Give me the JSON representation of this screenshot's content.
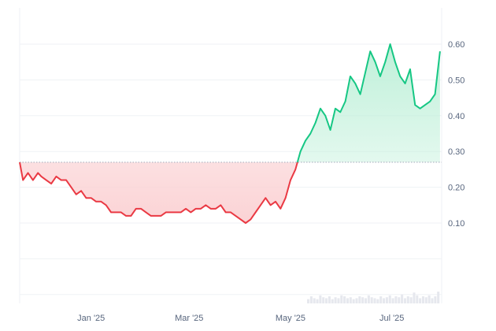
{
  "chart_data": {
    "type": "area",
    "baseline": 0.27,
    "ylim": [
      -0.1,
      0.65
    ],
    "y_ticks": [
      {
        "value": 0.1,
        "label": "0.10"
      },
      {
        "value": 0.2,
        "label": "0.20"
      },
      {
        "value": 0.3,
        "label": "0.30"
      },
      {
        "value": 0.4,
        "label": "0.40"
      },
      {
        "value": 0.5,
        "label": "0.50"
      },
      {
        "value": 0.6,
        "label": "0.60"
      }
    ],
    "x_range": [
      "2024-11-19",
      "2025-07-31"
    ],
    "x_ticks": [
      {
        "value": "2025-01-01",
        "label": "Jan '25"
      },
      {
        "value": "2025-03-01",
        "label": "Mar '25"
      },
      {
        "value": "2025-05-01",
        "label": "May '25"
      },
      {
        "value": "2025-07-01",
        "label": "Jul '25"
      }
    ],
    "series": [
      {
        "x": [
          "2024-11-19",
          "2024-11-21",
          "2024-11-24",
          "2024-11-27",
          "2024-11-30",
          "2024-12-02",
          "2024-12-05",
          "2024-12-08",
          "2024-12-11",
          "2024-12-14",
          "2024-12-17",
          "2024-12-20",
          "2024-12-23",
          "2024-12-26",
          "2024-12-29",
          "2025-01-01",
          "2025-01-04",
          "2025-01-07",
          "2025-01-10",
          "2025-01-13",
          "2025-01-16",
          "2025-01-19",
          "2025-01-22",
          "2025-01-25",
          "2025-01-28",
          "2025-01-31",
          "2025-02-03",
          "2025-02-06",
          "2025-02-09",
          "2025-02-12",
          "2025-02-15",
          "2025-02-18",
          "2025-02-21",
          "2025-02-24",
          "2025-02-27",
          "2025-03-02",
          "2025-03-05",
          "2025-03-08",
          "2025-03-11",
          "2025-03-14",
          "2025-03-17",
          "2025-03-20",
          "2025-03-23",
          "2025-03-26",
          "2025-03-29",
          "2025-04-01",
          "2025-04-04",
          "2025-04-07",
          "2025-04-10",
          "2025-04-13",
          "2025-04-16",
          "2025-04-19",
          "2025-04-22",
          "2025-04-25",
          "2025-04-28",
          "2025-05-01",
          "2025-05-04",
          "2025-05-07",
          "2025-05-10",
          "2025-05-13",
          "2025-05-16",
          "2025-05-19",
          "2025-05-22",
          "2025-05-25",
          "2025-05-28",
          "2025-05-31",
          "2025-06-03",
          "2025-06-06",
          "2025-06-09",
          "2025-06-12",
          "2025-06-15",
          "2025-06-18",
          "2025-06-21",
          "2025-06-24",
          "2025-06-27",
          "2025-06-30",
          "2025-07-03",
          "2025-07-06",
          "2025-07-09",
          "2025-07-12",
          "2025-07-15",
          "2025-07-18",
          "2025-07-21",
          "2025-07-24",
          "2025-07-27",
          "2025-07-30"
        ],
        "y": [
          0.27,
          0.22,
          0.24,
          0.22,
          0.24,
          0.23,
          0.22,
          0.21,
          0.23,
          0.22,
          0.22,
          0.2,
          0.18,
          0.19,
          0.17,
          0.17,
          0.16,
          0.16,
          0.15,
          0.13,
          0.13,
          0.13,
          0.12,
          0.12,
          0.14,
          0.14,
          0.13,
          0.12,
          0.12,
          0.12,
          0.13,
          0.13,
          0.13,
          0.13,
          0.14,
          0.13,
          0.14,
          0.14,
          0.15,
          0.14,
          0.14,
          0.15,
          0.13,
          0.13,
          0.12,
          0.11,
          0.1,
          0.11,
          0.13,
          0.15,
          0.17,
          0.15,
          0.16,
          0.14,
          0.17,
          0.22,
          0.25,
          0.3,
          0.33,
          0.35,
          0.38,
          0.42,
          0.4,
          0.36,
          0.42,
          0.41,
          0.44,
          0.51,
          0.49,
          0.46,
          0.52,
          0.58,
          0.55,
          0.51,
          0.55,
          0.6,
          0.55,
          0.51,
          0.49,
          0.53,
          0.43,
          0.42,
          0.43,
          0.44,
          0.46,
          0.58
        ]
      }
    ]
  },
  "colors": {
    "above": "#16c784",
    "below": "#ea3943",
    "fill_above_top": "#bff0d9",
    "fill_below_bottom": "#fbd3d5",
    "grid": "#eff2f5",
    "baseline": "#a1a7bb",
    "text": "#58667e",
    "volume": "#e6e8ee"
  },
  "volume_series": [
    0.2,
    0.5,
    0.3,
    0.2,
    0.6,
    0.4,
    0.3,
    0.5,
    0.2,
    0.4,
    0.3,
    0.6,
    0.5,
    0.3,
    0.4,
    0.2,
    0.3,
    0.5,
    0.4,
    0.3,
    0.6,
    0.4,
    0.3,
    0.2,
    0.5,
    0.3,
    0.4,
    0.6,
    0.3,
    0.5,
    0.4,
    0.7,
    0.3,
    0.5,
    0.4,
    0.9,
    0.6,
    0.3,
    0.5,
    0.4,
    0.6,
    0.3,
    0.5,
    1.0
  ]
}
